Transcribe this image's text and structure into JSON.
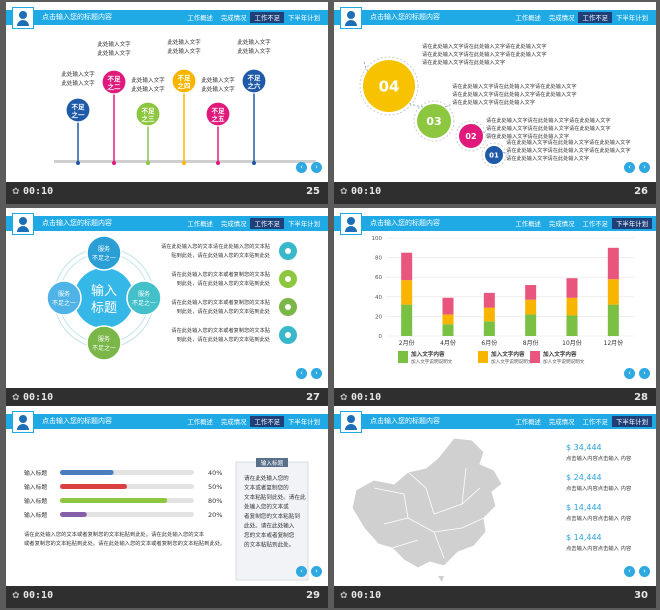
{
  "header": {
    "title": "点击输入您的标题内容",
    "tabs": [
      "工作概述",
      "完成情况",
      "工作不足",
      "下半年计划"
    ]
  },
  "nav": {
    "prev": "‹",
    "next": "›"
  },
  "slides": [
    {
      "number": "25",
      "time": "00:10",
      "active_tab": 2,
      "markers": [
        {
          "label": "不足\n之一",
          "color": "#1e5aa8",
          "text": [
            "此处输入文字",
            "此处输入文字"
          ]
        },
        {
          "label": "不足\n之二",
          "color": "#e0197d",
          "text": [
            "此处输入文字",
            "此处输入文字"
          ]
        },
        {
          "label": "不足\n之三",
          "color": "#8dc63f",
          "text": [
            "此处输入文字",
            "此处输入文字"
          ]
        },
        {
          "label": "不足\n之四",
          "color": "#f7b500",
          "text": [
            "此处输入文字",
            "此处输入文字"
          ]
        },
        {
          "label": "不足\n之五",
          "color": "#e0197d",
          "text": [
            "此处输入文字",
            "此处输入文字"
          ]
        },
        {
          "label": "不足\n之六",
          "color": "#1e5aa8",
          "text": [
            "此处输入文字",
            "此处输入文字"
          ]
        }
      ]
    },
    {
      "number": "26",
      "time": "00:10",
      "active_tab": 2,
      "circles": [
        {
          "label": "04",
          "color": "#f7c300",
          "text": [
            "请在此处输入文字请在此处输入文字请在此处输入文字",
            "请在此处输入文字请在此处输入文字请在此处输入文字",
            "请在此处输入文字请在此处输入文字"
          ]
        },
        {
          "label": "03",
          "color": "#8dc63f",
          "text": [
            "请在此处输入文字请在此处输入文字请在此处输入文字",
            "请在此处输入文字请在此处输入文字请在此处输入文字",
            "请在此处输入文字请在此处输入文字"
          ]
        },
        {
          "label": "02",
          "color": "#e0197d",
          "text": [
            "请在此处输入文字请在此处输入文字请在此处输入文字",
            "请在此处输入文字请在此处输入文字请在此处输入文字",
            "请在此处输入文字请在此处输入文字"
          ]
        },
        {
          "label": "01",
          "color": "#1e5aa8",
          "text": [
            "请在此处输入文字请在此处输入文字请在此处输入文字",
            "请在此处输入文字请在此处输入文字请在此处输入文字",
            "请在此处输入文字请在此处输入文字"
          ]
        }
      ]
    },
    {
      "number": "27",
      "time": "00:10",
      "active_tab": 2,
      "center": [
        "输入",
        "标题"
      ],
      "satellites": [
        {
          "label": [
            "服务",
            "不足之一"
          ],
          "color": "#2a9fd6"
        },
        {
          "label": [
            "服务",
            "不足之一"
          ],
          "color": "#43c0c9"
        },
        {
          "label": [
            "服务",
            "不足之一"
          ],
          "color": "#7ab648"
        },
        {
          "label": [
            "服务",
            "不足之一"
          ],
          "color": "#4fb3e8"
        }
      ],
      "items": [
        {
          "icon": "lightbulb-icon",
          "color": "#38b8c9",
          "text": [
            "请在此处输入您的文本请在此处输入您的文本贴",
            "贴到此处，请在此处输入您的文本贴到此处"
          ]
        },
        {
          "icon": "bulb-icon",
          "color": "#8dc63f",
          "text": [
            "请在此处输入您的文本或者复制您的文本贴",
            "到此处，请在此处输入您的文本贴到此处"
          ]
        },
        {
          "icon": "funnel-icon",
          "color": "#7ab648",
          "text": [
            "请在此处输入您的文本或者复制您的文本贴",
            "到此处，请在此处输入您的文本贴到此处"
          ]
        },
        {
          "icon": "tag-icon",
          "color": "#38b8c9",
          "text": [
            "请在此处输入您的文本或者复制您的文本贴",
            "到此处，请在此处输入您的文本贴到此处"
          ]
        }
      ]
    },
    {
      "number": "28",
      "time": "00:10",
      "active_tab": 3,
      "chart_data": {
        "type": "bar",
        "stacked": true,
        "categories": [
          "2月份",
          "4月份",
          "6月份",
          "8月份",
          "10月份",
          "12月份"
        ],
        "series": [
          {
            "name": "加入文字内容",
            "color": "#7ac143",
            "values": [
              32,
              12,
              15,
              22,
              21,
              32
            ]
          },
          {
            "name": "加入文字内容",
            "color": "#f7b500",
            "values": [
              25,
              10,
              14,
              15,
              18,
              26
            ]
          },
          {
            "name": "加入文字内容",
            "color": "#e8567e",
            "values": [
              28,
              17,
              15,
              15,
              20,
              32
            ]
          }
        ],
        "ylim": [
          0,
          100
        ],
        "yticks": [
          0,
          20,
          40,
          60,
          80,
          100
        ],
        "legend_sub": "加入文字说明说明文"
      }
    },
    {
      "number": "29",
      "time": "00:10",
      "active_tab": 2,
      "bars": [
        {
          "label": "输入标题",
          "percent": 40,
          "value": "40%",
          "color": "#4a7cc0"
        },
        {
          "label": "输入标题",
          "percent": 50,
          "value": "50%",
          "color": "#d94040"
        },
        {
          "label": "输入标题",
          "percent": 80,
          "value": "80%",
          "color": "#8dc63f"
        },
        {
          "label": "输入标题",
          "percent": 20,
          "value": "20%",
          "color": "#8560a8"
        }
      ],
      "paragraph": [
        "请在此处输入您的文本或者复制您的文本粘贴到此处。请在此处输入您的文本",
        "或者复制您的文本粘贴到此处。请在此处输入您的文本或者复制您的文本粘贴到此处。"
      ],
      "note": {
        "title": "输入标题",
        "lines": [
          "请在此处输入您的",
          "文本或者复制您的",
          "文本粘贴到此处。请在此",
          "处输入您的文本或",
          "者复制您的文本粘贴到",
          "此处。请在此处输入",
          "您的文本或者复制您",
          "的文本粘贴到此处。"
        ]
      }
    },
    {
      "number": "30",
      "time": "00:10",
      "active_tab": 3,
      "stats": [
        {
          "value": "$ 34,444",
          "caption": "点击输入内容点击输入 内容"
        },
        {
          "value": "$ 24,444",
          "caption": "点击输入内容点击输入 内容"
        },
        {
          "value": "$ 14,444",
          "caption": "点击输入内容点击输入 内容"
        },
        {
          "value": "$ 14,444",
          "caption": "点击输入内容点击输入 内容"
        }
      ]
    }
  ]
}
